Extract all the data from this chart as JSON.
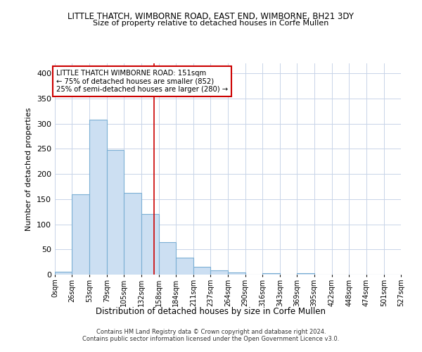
{
  "title_line1": "LITTLE THATCH, WIMBORNE ROAD, EAST END, WIMBORNE, BH21 3DY",
  "title_line2": "Size of property relative to detached houses in Corfe Mullen",
  "xlabel": "Distribution of detached houses by size in Corfe Mullen",
  "ylabel": "Number of detached properties",
  "bar_color": "#ccdff2",
  "bar_edge_color": "#7bafd4",
  "bin_edges": [
    0,
    26,
    53,
    79,
    105,
    132,
    158,
    184,
    211,
    237,
    264,
    290,
    316,
    343,
    369,
    395,
    422,
    448,
    474,
    501,
    527
  ],
  "bin_labels": [
    "0sqm",
    "26sqm",
    "53sqm",
    "79sqm",
    "105sqm",
    "132sqm",
    "158sqm",
    "184sqm",
    "211sqm",
    "237sqm",
    "264sqm",
    "290sqm",
    "316sqm",
    "343sqm",
    "369sqm",
    "395sqm",
    "422sqm",
    "448sqm",
    "474sqm",
    "501sqm",
    "527sqm"
  ],
  "values": [
    5,
    160,
    308,
    248,
    163,
    120,
    65,
    33,
    16,
    9,
    4,
    0,
    3,
    0,
    3,
    0,
    0,
    0,
    0,
    0
  ],
  "vline_x": 151,
  "vline_color": "#cc0000",
  "annotation_title": "LITTLE THATCH WIMBORNE ROAD: 151sqm",
  "annotation_line1": "← 75% of detached houses are smaller (852)",
  "annotation_line2": "25% of semi-detached houses are larger (280) →",
  "annotation_box_color": "#ffffff",
  "annotation_box_edge": "#cc0000",
  "ylim": [
    0,
    420
  ],
  "yticks": [
    0,
    50,
    100,
    150,
    200,
    250,
    300,
    350,
    400
  ],
  "background_color": "#ffffff",
  "grid_color": "#c8d4e8",
  "footnote1": "Contains HM Land Registry data © Crown copyright and database right 2024.",
  "footnote2": "Contains public sector information licensed under the Open Government Licence v3.0."
}
